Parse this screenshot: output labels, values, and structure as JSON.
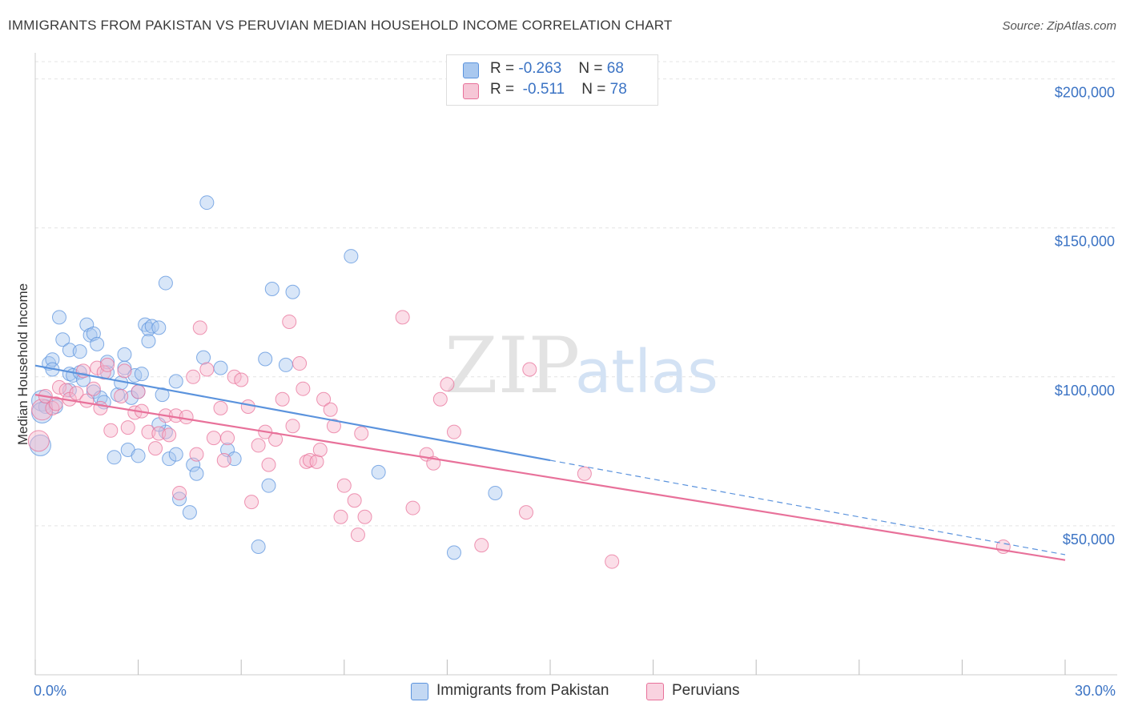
{
  "title": "IMMIGRANTS FROM PAKISTAN VS PERUVIAN MEDIAN HOUSEHOLD INCOME CORRELATION CHART",
  "source": "Source: ZipAtlas.com",
  "watermark": {
    "zip": "ZIP",
    "atlas": "atlas"
  },
  "legend": {
    "rows": [
      {
        "r_label": "R = ",
        "r_value": "-0.263",
        "n_label": "N = ",
        "n_value": "68",
        "color": "#a9c8ef"
      },
      {
        "r_label": "R = ",
        "r_value": "-0.511",
        "n_label": "N = ",
        "n_value": "78",
        "color": "#f6b6cb"
      }
    ]
  },
  "bottom_legend": [
    "Immigrants from Pakistan",
    "Peruvians"
  ],
  "chart_data": {
    "type": "scatter",
    "title": "IMMIGRANTS FROM PAKISTAN VS PERUVIAN MEDIAN HOUSEHOLD INCOME CORRELATION CHART",
    "xlabel": "",
    "ylabel": "Median Household Income",
    "xlim": [
      0,
      30
    ],
    "ylim": [
      0,
      205000
    ],
    "x_tick_labels": [
      "0.0%",
      "30.0%"
    ],
    "y_ticks": [
      50000,
      100000,
      150000,
      200000
    ],
    "y_tick_labels": [
      "$50,000",
      "$100,000",
      "$150,000",
      "$200,000"
    ],
    "grid": true,
    "series": [
      {
        "name": "Immigrants from Pakistan",
        "color": "#5b93dd",
        "fill": "#a9c8ef",
        "trend": {
          "x0": 0,
          "y0": 103800,
          "x1": 15,
          "y1": 72000,
          "dash_to_x": 30,
          "dash_to_y": 40300
        },
        "points": [
          [
            0.2,
            92000
          ],
          [
            0.3,
            90000
          ],
          [
            0.4,
            104500
          ],
          [
            0.5,
            105800
          ],
          [
            0.5,
            102500
          ],
          [
            0.6,
            90000
          ],
          [
            0.7,
            120000
          ],
          [
            0.8,
            112500
          ],
          [
            1.0,
            101000
          ],
          [
            1.0,
            109000
          ],
          [
            1.1,
            100500
          ],
          [
            1.3,
            108500
          ],
          [
            1.3,
            101500
          ],
          [
            1.4,
            99000
          ],
          [
            1.5,
            117500
          ],
          [
            1.6,
            114000
          ],
          [
            1.7,
            95000
          ],
          [
            1.7,
            114500
          ],
          [
            1.8,
            111000
          ],
          [
            1.9,
            93000
          ],
          [
            2.1,
            101500
          ],
          [
            2.1,
            105000
          ],
          [
            2.3,
            73000
          ],
          [
            2.4,
            94000
          ],
          [
            2.5,
            98000
          ],
          [
            2.6,
            107500
          ],
          [
            2.6,
            103000
          ],
          [
            2.7,
            75500
          ],
          [
            2.8,
            93000
          ],
          [
            2.9,
            100500
          ],
          [
            3.0,
            95000
          ],
          [
            3.0,
            73500
          ],
          [
            3.1,
            101000
          ],
          [
            3.2,
            117500
          ],
          [
            3.3,
            116000
          ],
          [
            3.3,
            112000
          ],
          [
            3.4,
            117000
          ],
          [
            3.6,
            116500
          ],
          [
            3.7,
            94000
          ],
          [
            3.8,
            81500
          ],
          [
            3.8,
            131500
          ],
          [
            3.9,
            72500
          ],
          [
            4.1,
            74000
          ],
          [
            4.1,
            98500
          ],
          [
            4.2,
            59000
          ],
          [
            4.5,
            54500
          ],
          [
            4.6,
            70500
          ],
          [
            4.7,
            67500
          ],
          [
            4.9,
            106500
          ],
          [
            5.0,
            158500
          ],
          [
            5.4,
            103000
          ],
          [
            5.6,
            75500
          ],
          [
            5.8,
            72500
          ],
          [
            6.5,
            43000
          ],
          [
            6.7,
            106000
          ],
          [
            6.8,
            63500
          ],
          [
            6.9,
            129500
          ],
          [
            7.3,
            104000
          ],
          [
            7.5,
            128500
          ],
          [
            9.2,
            140500
          ],
          [
            10.0,
            68000
          ],
          [
            12.2,
            41000
          ],
          [
            13.4,
            61000
          ],
          [
            0.2,
            88000
          ],
          [
            0.15,
            77000
          ],
          [
            1.0,
            95500
          ],
          [
            2.0,
            91500
          ],
          [
            3.6,
            84000
          ]
        ]
      },
      {
        "name": "Peruvians",
        "color": "#e8719a",
        "fill": "#f6b6cb",
        "trend": {
          "x0": 0,
          "y0": 94000,
          "x1": 30,
          "y1": 38500
        },
        "points": [
          [
            0.2,
            89000
          ],
          [
            0.3,
            93500
          ],
          [
            0.5,
            89500
          ],
          [
            0.6,
            91000
          ],
          [
            0.7,
            96500
          ],
          [
            0.9,
            95500
          ],
          [
            1.0,
            92500
          ],
          [
            1.2,
            94500
          ],
          [
            1.4,
            102000
          ],
          [
            1.5,
            92000
          ],
          [
            1.7,
            96000
          ],
          [
            1.8,
            103000
          ],
          [
            1.9,
            89500
          ],
          [
            2.0,
            101500
          ],
          [
            2.1,
            104000
          ],
          [
            2.2,
            82000
          ],
          [
            2.5,
            93500
          ],
          [
            2.6,
            102000
          ],
          [
            2.7,
            83000
          ],
          [
            2.9,
            88000
          ],
          [
            3.0,
            95000
          ],
          [
            3.1,
            88500
          ],
          [
            3.3,
            81500
          ],
          [
            3.5,
            76000
          ],
          [
            3.6,
            81000
          ],
          [
            3.8,
            87000
          ],
          [
            3.9,
            80500
          ],
          [
            4.1,
            87000
          ],
          [
            4.2,
            61000
          ],
          [
            4.4,
            86500
          ],
          [
            4.6,
            100000
          ],
          [
            4.7,
            74000
          ],
          [
            4.8,
            116500
          ],
          [
            5.0,
            102500
          ],
          [
            5.2,
            79500
          ],
          [
            5.4,
            89500
          ],
          [
            5.5,
            72000
          ],
          [
            5.6,
            79500
          ],
          [
            5.8,
            100000
          ],
          [
            6.0,
            99000
          ],
          [
            6.2,
            90000
          ],
          [
            6.3,
            58000
          ],
          [
            6.5,
            77000
          ],
          [
            6.7,
            81500
          ],
          [
            6.8,
            70500
          ],
          [
            7.0,
            79000
          ],
          [
            7.2,
            92500
          ],
          [
            7.4,
            118500
          ],
          [
            7.5,
            83500
          ],
          [
            7.7,
            104500
          ],
          [
            7.8,
            96000
          ],
          [
            7.9,
            71500
          ],
          [
            8.0,
            72000
          ],
          [
            8.2,
            71500
          ],
          [
            8.3,
            75500
          ],
          [
            8.4,
            92500
          ],
          [
            8.6,
            89000
          ],
          [
            8.7,
            83500
          ],
          [
            8.9,
            53000
          ],
          [
            9.0,
            63500
          ],
          [
            9.3,
            58500
          ],
          [
            9.4,
            47000
          ],
          [
            9.5,
            81000
          ],
          [
            9.6,
            53000
          ],
          [
            10.7,
            120000
          ],
          [
            11.0,
            56000
          ],
          [
            11.4,
            74000
          ],
          [
            11.6,
            71000
          ],
          [
            11.8,
            92500
          ],
          [
            12.0,
            97500
          ],
          [
            12.2,
            81500
          ],
          [
            13.0,
            43500
          ],
          [
            14.3,
            54500
          ],
          [
            14.4,
            102500
          ],
          [
            16.0,
            67500
          ],
          [
            16.8,
            38000
          ],
          [
            28.2,
            43000
          ],
          [
            0.1,
            78500
          ]
        ]
      }
    ]
  }
}
